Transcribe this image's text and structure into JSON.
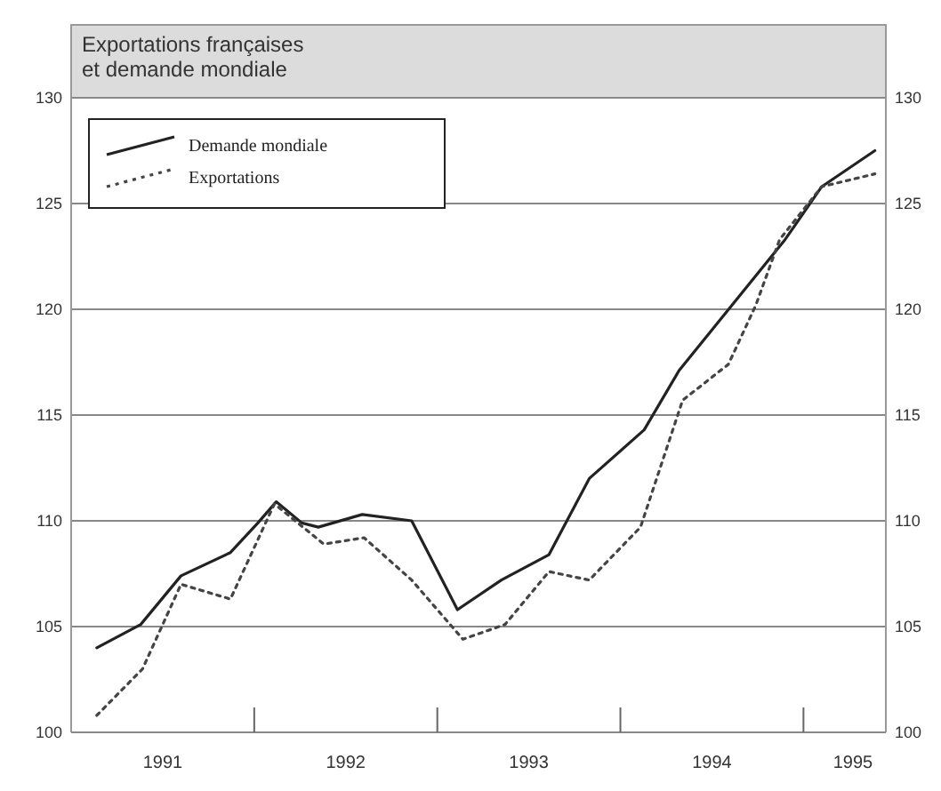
{
  "chart_data": {
    "type": "line",
    "title": "Exportations françaises\net demande mondiale",
    "xlim": [
      1991,
      1995.45
    ],
    "xticks": [
      {
        "value": 1991.5,
        "label": "1991"
      },
      {
        "value": 1992,
        "label": null
      },
      {
        "value": 1992.5,
        "label": "1992"
      },
      {
        "value": 1993,
        "label": null
      },
      {
        "value": 1993.5,
        "label": "1993"
      },
      {
        "value": 1994,
        "label": null
      },
      {
        "value": 1994.5,
        "label": "1994"
      },
      {
        "value": 1995,
        "label": null
      },
      {
        "value": 1995.27,
        "label": "1995"
      }
    ],
    "ylim": [
      100,
      130
    ],
    "yticks": [
      100,
      105,
      110,
      115,
      120,
      125,
      130
    ],
    "y2lim": [
      100,
      130
    ],
    "y2ticks": [
      100,
      105,
      110,
      115,
      120,
      125,
      130
    ],
    "grid": "y",
    "legend": "top left",
    "series": [
      {
        "name": "Demande mondiale",
        "color": "#222222",
        "line_style": "solid",
        "x": [
          1991.14,
          1991.38,
          1991.6,
          1991.87,
          1992.02,
          1992.12,
          1992.26,
          1992.35,
          1992.59,
          1992.86,
          1993.11,
          1993.35,
          1993.61,
          1993.83,
          1994.13,
          1994.32,
          1994.61,
          1994.9,
          1995.1,
          1995.39
        ],
        "values": [
          104.0,
          105.1,
          107.4,
          108.5,
          109.9,
          110.9,
          109.9,
          109.7,
          110.3,
          110.0,
          105.8,
          107.2,
          108.4,
          112.0,
          114.3,
          117.1,
          120.2,
          123.3,
          125.8,
          127.5
        ]
      },
      {
        "name": "Exportations",
        "color": "#444444",
        "line_style": "dotted",
        "x": [
          1991.14,
          1991.39,
          1991.6,
          1991.87,
          1992.11,
          1992.38,
          1992.6,
          1992.86,
          1993.14,
          1993.37,
          1993.61,
          1993.83,
          1994.11,
          1994.34,
          1994.59,
          1994.74,
          1994.87,
          1995.1,
          1995.39
        ],
        "values": [
          100.8,
          103.0,
          107.0,
          106.3,
          110.8,
          108.9,
          109.2,
          107.2,
          104.4,
          105.1,
          107.6,
          107.2,
          109.7,
          115.7,
          117.4,
          120.2,
          123.3,
          125.8,
          126.4
        ]
      }
    ]
  }
}
